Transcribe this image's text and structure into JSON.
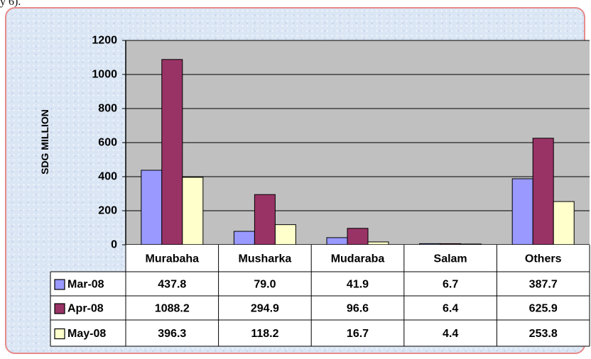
{
  "page": {
    "top_fragment": "y 6)."
  },
  "chart_data": {
    "type": "bar",
    "ylabel": "SDG MILLION",
    "ylim": [
      0,
      1200
    ],
    "yticks": [
      0,
      200,
      400,
      600,
      800,
      1000,
      1200
    ],
    "grid": true,
    "legend_placement": "data-table",
    "plot_background": "#c0c0c0",
    "categories": [
      "Murabaha",
      "Musharka",
      "Mudaraba",
      "Salam",
      "Others"
    ],
    "series": [
      {
        "name": "Mar-08",
        "color": "#9999ff",
        "values": [
          437.8,
          79.0,
          41.9,
          6.7,
          387.7
        ],
        "labels": [
          "437.8",
          "79.0",
          "41.9",
          "6.7",
          "387.7"
        ]
      },
      {
        "name": "Apr-08",
        "color": "#993366",
        "values": [
          1088.2,
          294.9,
          96.6,
          6.4,
          625.9
        ],
        "labels": [
          "1088.2",
          "294.9",
          "96.6",
          "6.4",
          "625.9"
        ]
      },
      {
        "name": "May-08",
        "color": "#ffffcc",
        "values": [
          396.3,
          118.2,
          16.7,
          4.4,
          253.8
        ],
        "labels": [
          "396.3",
          "118.2",
          "16.7",
          "4.4",
          "253.8"
        ]
      }
    ]
  }
}
